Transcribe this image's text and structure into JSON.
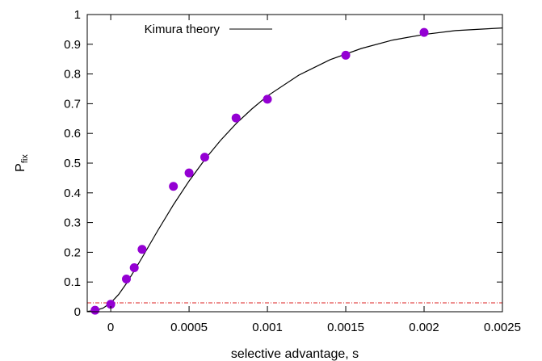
{
  "chart_data": {
    "type": "scatter",
    "xlabel": "selective advantage, s",
    "ylabel": "P",
    "ylabel_sub": "fix",
    "xlim": [
      -0.00015,
      0.0025
    ],
    "ylim": [
      0,
      1
    ],
    "x_ticks": [
      0,
      0.0005,
      0.001,
      0.0015,
      0.002,
      0.0025
    ],
    "x_tick_labels": [
      "0",
      "0.0005",
      "0.001",
      "0.0015",
      "0.002",
      "0.0025"
    ],
    "y_ticks": [
      0,
      0.1,
      0.2,
      0.3,
      0.4,
      0.5,
      0.6,
      0.7,
      0.8,
      0.9,
      1
    ],
    "y_tick_labels": [
      "0",
      "0.1",
      "0.2",
      "0.3",
      "0.4",
      "0.5",
      "0.6",
      "0.7",
      "0.8",
      "0.9",
      "1"
    ],
    "grid": false,
    "legend_position": "top-left",
    "series": [
      {
        "kind": "points",
        "color": "#9400d3",
        "points": [
          {
            "x": -0.0001,
            "y": 0.005
          },
          {
            "x": 0.0,
            "y": 0.025
          },
          {
            "x": 0.0001,
            "y": 0.11
          },
          {
            "x": 0.00015,
            "y": 0.148
          },
          {
            "x": 0.0002,
            "y": 0.21
          },
          {
            "x": 0.0004,
            "y": 0.422
          },
          {
            "x": 0.0005,
            "y": 0.467
          },
          {
            "x": 0.0006,
            "y": 0.52
          },
          {
            "x": 0.0008,
            "y": 0.652
          },
          {
            "x": 0.001,
            "y": 0.715
          },
          {
            "x": 0.0015,
            "y": 0.863
          },
          {
            "x": 0.002,
            "y": 0.94
          }
        ]
      },
      {
        "kind": "curve",
        "name": "Kimura theory",
        "color": "#000000",
        "x": [
          -0.00015,
          -0.0001,
          -5e-05,
          0,
          5e-05,
          0.0001,
          0.00015,
          0.0002,
          0.0003,
          0.0004,
          0.0005,
          0.0006,
          0.0007,
          0.0008,
          0.0009,
          0.001,
          0.0012,
          0.0014,
          0.0016,
          0.0018,
          0.002,
          0.0022,
          0.0025
        ],
        "y": [
          0.001,
          0.004,
          0.012,
          0.03,
          0.058,
          0.095,
          0.138,
          0.182,
          0.273,
          0.36,
          0.44,
          0.512,
          0.576,
          0.633,
          0.682,
          0.726,
          0.796,
          0.848,
          0.886,
          0.914,
          0.933,
          0.946,
          0.955
        ]
      },
      {
        "kind": "hline",
        "color": "#dd2222",
        "y": 0.03
      }
    ]
  }
}
